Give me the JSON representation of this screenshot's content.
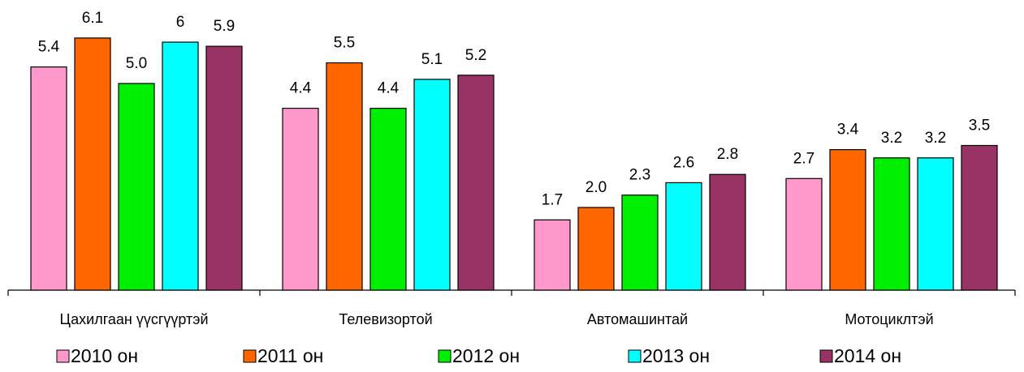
{
  "chart_data": {
    "type": "bar",
    "categories": [
      "Цахилгаан үүсгүүртэй",
      "Телевизортой",
      "Автомашинтай",
      "Мотоциклтэй"
    ],
    "series": [
      {
        "name": "2010 он",
        "color": "#ff99cc",
        "values": [
          5.4,
          4.4,
          1.7,
          2.7
        ],
        "value_labels": [
          "5.4",
          "4.4",
          "1.7",
          "2.7"
        ]
      },
      {
        "name": "2011 он",
        "color": "#ff6600",
        "values": [
          6.1,
          5.5,
          2.0,
          3.4
        ],
        "value_labels": [
          "6.1",
          "5.5",
          "2.0",
          "3.4"
        ]
      },
      {
        "name": "2012 он",
        "color": "#00ee00",
        "values": [
          5.0,
          4.4,
          2.3,
          3.2
        ],
        "value_labels": [
          "5.0",
          "4.4",
          "2.3",
          "3.2"
        ]
      },
      {
        "name": "2013 он",
        "color": "#00ffff",
        "values": [
          6,
          5.1,
          2.6,
          3.2
        ],
        "value_labels": [
          "6",
          "5.1",
          "2.6",
          "3.2"
        ]
      },
      {
        "name": "2014 он",
        "color": "#993366",
        "values": [
          5.9,
          5.2,
          2.8,
          3.5
        ],
        "value_labels": [
          "5.9",
          "5.2",
          "2.8",
          "3.5"
        ]
      }
    ]
  }
}
